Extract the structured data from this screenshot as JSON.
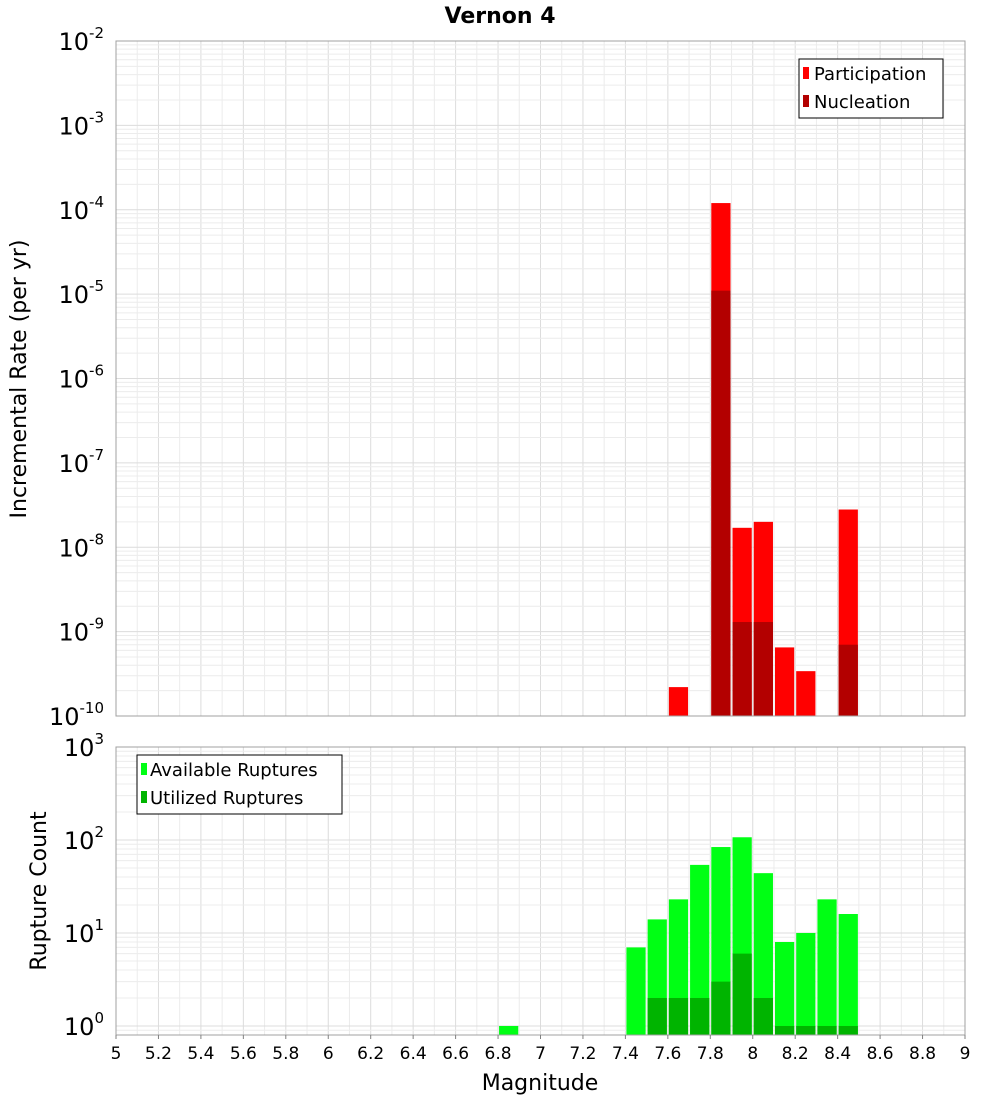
{
  "colors": {
    "participation": "#ff0000",
    "nucleation": "#b30000",
    "available": "#00ff14",
    "utilized": "#00b400",
    "grid_minor": "#ececec",
    "grid_major": "#dcdcdc",
    "frame": "#a0a0a0"
  },
  "chart_data": [
    {
      "type": "bar",
      "title": "Vernon 4",
      "xlabel": "",
      "ylabel": "Incremental Rate (per yr)",
      "ylog": true,
      "ylim": [
        1e-10,
        0.01
      ],
      "xlim": [
        5,
        9
      ],
      "bin_width": 0.1,
      "grid": true,
      "legend_position": "top-right",
      "ytick_exponents": [
        "-10",
        "-9",
        "-8",
        "-7",
        "-6",
        "-5",
        "-4",
        "-3",
        "-2"
      ],
      "ytick_base": "10",
      "series": [
        {
          "name": "Participation",
          "x": [
            7.65,
            7.85,
            7.95,
            8.05,
            8.15,
            8.25,
            8.45
          ],
          "values": [
            2.2e-10,
            0.00012,
            1.7e-08,
            2e-08,
            6.5e-10,
            3.4e-10,
            2.8e-08
          ]
        },
        {
          "name": "Nucleation",
          "x": [
            7.85,
            7.95,
            8.05,
            8.45
          ],
          "values": [
            1.1e-05,
            1.3e-09,
            1.3e-09,
            7e-10
          ]
        }
      ]
    },
    {
      "type": "bar",
      "title": "",
      "xlabel": "Magnitude",
      "ylabel": "Rupture Count",
      "ylog": true,
      "ylim": [
        0.8,
        1000
      ],
      "xlim": [
        5,
        9
      ],
      "bin_width": 0.1,
      "grid": true,
      "legend_position": "top-left",
      "ytick_exponents": [
        "0",
        "1",
        "2",
        "3"
      ],
      "ytick_base": "10",
      "xticks": [
        "5",
        "5.2",
        "5.4",
        "5.6",
        "5.8",
        "6",
        "6.2",
        "6.4",
        "6.6",
        "6.8",
        "7",
        "7.2",
        "7.4",
        "7.6",
        "7.8",
        "8",
        "8.2",
        "8.4",
        "8.6",
        "8.8",
        "9"
      ],
      "series": [
        {
          "name": "Available Ruptures",
          "x": [
            6.85,
            7.45,
            7.55,
            7.65,
            7.75,
            7.85,
            7.95,
            8.05,
            8.15,
            8.25,
            8.35,
            8.45
          ],
          "values": [
            1,
            7,
            14,
            23,
            54,
            84,
            107,
            44,
            8,
            10,
            23,
            16
          ]
        },
        {
          "name": "Utilized Ruptures",
          "x": [
            7.55,
            7.65,
            7.75,
            7.85,
            7.95,
            8.05,
            8.15,
            8.25,
            8.35,
            8.45
          ],
          "values": [
            2,
            2,
            2,
            3,
            6,
            2,
            1,
            1,
            1,
            1
          ]
        }
      ]
    }
  ]
}
